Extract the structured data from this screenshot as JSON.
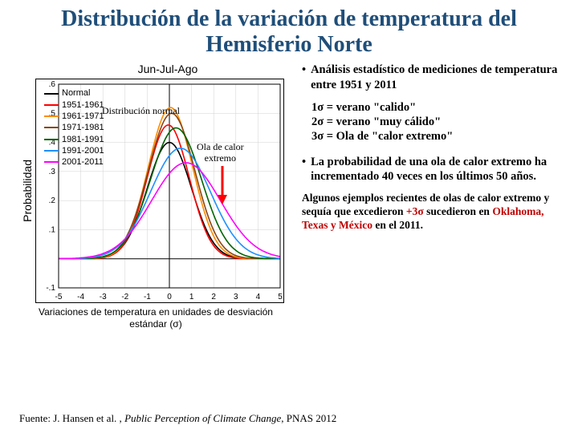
{
  "title": "Distribución de la variación de temperatura del Hemisferio Norte",
  "chart": {
    "caption_top": "Jun-Jul-Ago",
    "ylabel": "Probabilidad",
    "caption_bottom": "Variaciones de temperatura en unidades de desviación estándar (σ)",
    "normal_label": "Distribución normal",
    "heatwave_label_l1": "Ola de calor",
    "heatwave_label_l2": "extremo",
    "xlim": [
      -5,
      5
    ],
    "ylim": [
      -0.1,
      0.6
    ],
    "xticks": [
      -5,
      -4,
      -3,
      -2,
      -1,
      0,
      1,
      2,
      3,
      4,
      5
    ],
    "yticks": [
      0.1,
      0.2,
      0.3,
      0.4,
      0.5,
      0.6
    ],
    "yticks_neg": [
      -0.1
    ],
    "grid_color": "#d0d0d0",
    "axis_color": "#000000",
    "arrow_color": "#ff0000",
    "series": [
      {
        "label": "Normal",
        "color": "#000000",
        "mu": 0.0,
        "sigma": 1.0,
        "scale": 0.4
      },
      {
        "label": "1951-1961",
        "color": "#ff0000",
        "mu": -0.05,
        "sigma": 0.95,
        "scale": 0.46
      },
      {
        "label": "1961-1971",
        "color": "#ff8c00",
        "mu": 0.05,
        "sigma": 1.0,
        "scale": 0.52
      },
      {
        "label": "1971-1981",
        "color": "#8b4513",
        "mu": 0.1,
        "sigma": 1.05,
        "scale": 0.5
      },
      {
        "label": "1981-1991",
        "color": "#006400",
        "mu": 0.3,
        "sigma": 1.15,
        "scale": 0.45
      },
      {
        "label": "1991-2001",
        "color": "#1e90ff",
        "mu": 0.5,
        "sigma": 1.35,
        "scale": 0.38
      },
      {
        "label": "2001-2011",
        "color": "#ff00ff",
        "mu": 0.75,
        "sigma": 1.55,
        "scale": 0.33
      }
    ]
  },
  "bullets": {
    "b1": "Análisis estadístico de mediciones de temperatura entre 1951 y 2011",
    "s1": "1σ = verano \"calido\"",
    "s2": "2σ = verano \"muy cálido\"",
    "s3": "3σ = Ola de \"calor extremo\"",
    "b2": "La probabilidad de una ola de calor extremo ha incrementado 40 veces en  los últimos 50 años."
  },
  "example": {
    "pre": "Algunos ejemplos recientes de olas de calor extremo y sequía que excedieron ",
    "sig": "+3σ",
    "mid": "  sucedieron en ",
    "places": "Oklahoma, Texas y México",
    "post": " en el 2011."
  },
  "source": {
    "pre": "Fuente: J. Hansen et al. , ",
    "ital": "Public Perception of Climate Change",
    "post": ", PNAS 2012"
  }
}
